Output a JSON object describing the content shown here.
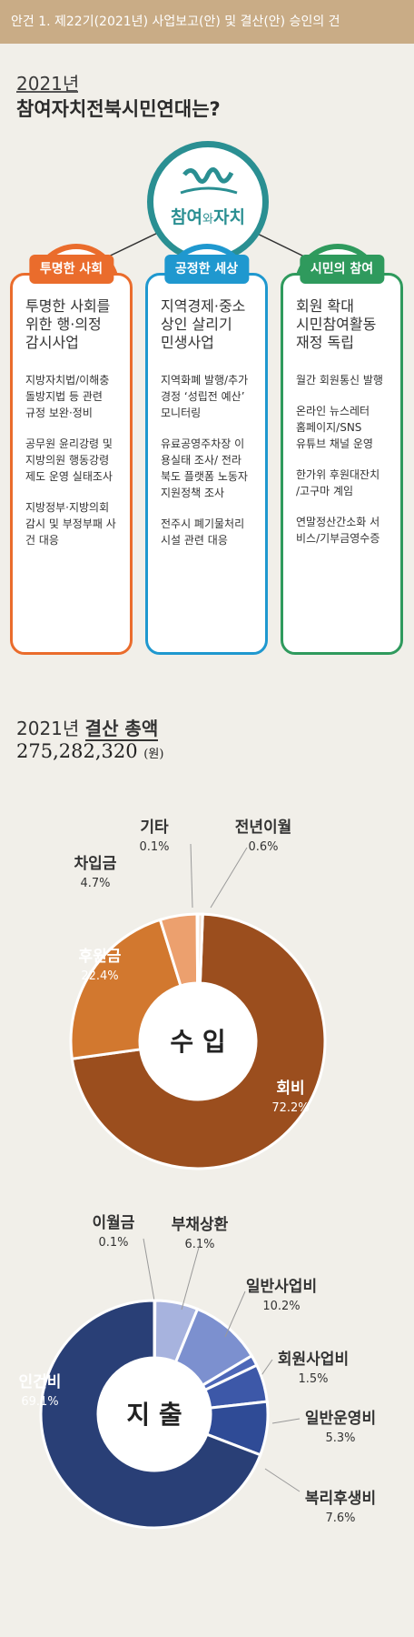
{
  "header": {
    "title": "안건 1. 제22기(2021년) 사업보고(안) 및 결산(안) 승인의 건"
  },
  "intro": {
    "year": "2021년",
    "title": "참여자치전북시민연대는?"
  },
  "center": {
    "label_a": "참여",
    "label_b": "와",
    "label_c": "자치"
  },
  "columns": [
    {
      "badge": "투명한 사회",
      "heading": "투명한 사회를\n위한 행·의정\n감시사업",
      "items": [
        "지방자치법/이해충\n돌방지법 등 관련\n규정 보완·정비",
        "공무원 윤리강령 및\n지방의원 행동강령\n제도 운영 실태조사",
        "지방정부·지방의회\n감시 및 부정부패 사\n건 대응"
      ]
    },
    {
      "badge": "공정한 세상",
      "heading": "지역경제·중소\n상인 살리기\n민생사업",
      "items": [
        "지역화폐 발행/추가\n경정 ‘성립전 예산’\n모니터링",
        "유료공영주차장 이\n용실태 조사/ 전라\n북도 플랫폼 노동자\n지원정책 조사",
        "전주시 폐기물처리\n시설 관련 대응"
      ]
    },
    {
      "badge": "시민의 참여",
      "heading": "회원 확대\n시민참여활동\n재정 독립",
      "items": [
        "월간 회원통신 발행",
        "온라인 뉴스레터\n홈페이지/SNS\n유튜브 채널 운영",
        "한가위 후원대잔치\n/고구마 계임",
        "연말정산간소화 서\n비스/기부금영수증"
      ]
    }
  ],
  "settlement": {
    "title_year": "2021년",
    "title_bold": "결산 총액",
    "total": "275,282,320",
    "unit": "(원)"
  },
  "chart_data": [
    {
      "type": "pie",
      "title": "수 입",
      "categories": [
        "회비",
        "후원금",
        "차입금",
        "기타",
        "전년이월"
      ],
      "values": [
        72.2,
        22.4,
        4.7,
        0.1,
        0.6
      ],
      "labels": [
        "72.2%",
        "22.4%",
        "4.7%",
        "0.1%",
        "0.6%"
      ],
      "colors": [
        "#9b4e1e",
        "#d2782f",
        "#eca06e",
        "#f2c49d",
        "#f0ddcc"
      ]
    },
    {
      "type": "pie",
      "title": "지 출",
      "categories": [
        "이월금",
        "부채상환",
        "일반사업비",
        "회원사업비",
        "일반운영비",
        "복리후생비",
        "인건비"
      ],
      "values": [
        0.1,
        6.1,
        10.2,
        1.5,
        5.3,
        7.6,
        69.1
      ],
      "labels": [
        "0.1%",
        "6.1%",
        "10.2%",
        "1.5%",
        "5.3%",
        "7.6%",
        "69.1%"
      ],
      "colors": [
        "#c9d2ea",
        "#a7b3de",
        "#7c90cf",
        "#4d67b8",
        "#3d58a8",
        "#2f4b96",
        "#293f76"
      ]
    }
  ],
  "colors": {
    "orange": "#ea6c2c",
    "blue": "#1f98cf",
    "green": "#2f9a5d",
    "teal": "#2a8f92"
  }
}
